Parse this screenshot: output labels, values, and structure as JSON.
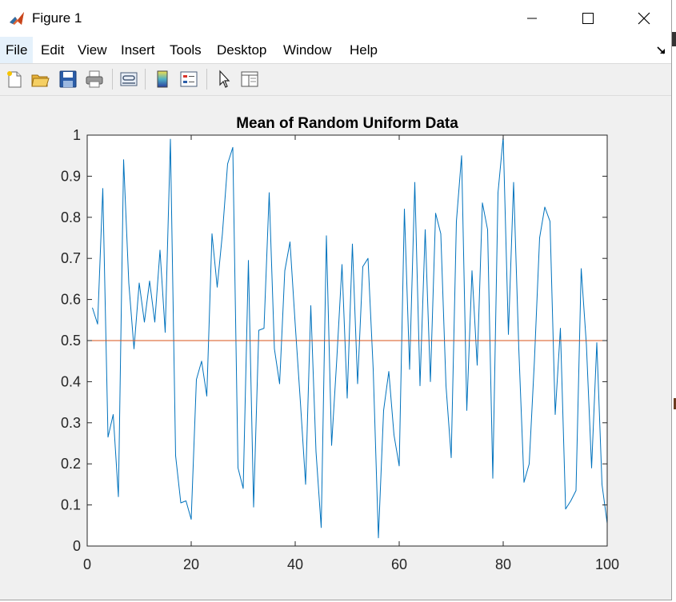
{
  "window": {
    "title": "Figure 1"
  },
  "menu": {
    "items": [
      "File",
      "Edit",
      "View",
      "Insert",
      "Tools",
      "Desktop",
      "Window",
      "Help"
    ]
  },
  "toolbar": {
    "buttons": [
      "new-figure-icon",
      "open-file-icon",
      "save-icon",
      "print-icon",
      "link-plot-icon",
      "colorbar-icon",
      "legend-icon",
      "pointer-icon",
      "property-inspector-icon"
    ]
  },
  "colors": {
    "series": "#0072bd",
    "reference_line": "#d95319",
    "window_bg": "#f0f0f0"
  },
  "chart_data": {
    "type": "line",
    "title": "Mean of Random Uniform Data",
    "xlim": [
      0,
      100
    ],
    "ylim": [
      0,
      1
    ],
    "xticks": [
      0,
      20,
      40,
      60,
      80,
      100
    ],
    "yticks": [
      0,
      0.1,
      0.2,
      0.3,
      0.4,
      0.5,
      0.6,
      0.7,
      0.8,
      0.9,
      1
    ],
    "xtick_labels": [
      "0",
      "20",
      "40",
      "60",
      "80",
      "100"
    ],
    "ytick_labels": [
      "0",
      "0.1",
      "0.2",
      "0.3",
      "0.4",
      "0.5",
      "0.6",
      "0.7",
      "0.8",
      "0.9",
      "1"
    ],
    "grid": false,
    "series": [
      {
        "x": [
          1,
          2,
          3,
          4,
          5,
          6,
          7,
          8,
          9,
          10,
          11,
          12,
          13,
          14,
          15,
          16,
          17,
          18,
          19,
          20,
          21,
          22,
          23,
          24,
          25,
          26,
          27,
          28,
          29,
          30,
          31,
          32,
          33,
          34,
          35,
          36,
          37,
          38,
          39,
          40,
          41,
          42,
          43,
          44,
          45,
          46,
          47,
          48,
          49,
          50,
          51,
          52,
          53,
          54,
          55,
          56,
          57,
          58,
          59,
          60,
          61,
          62,
          63,
          64,
          65,
          66,
          67,
          68,
          69,
          70,
          71,
          72,
          73,
          74,
          75,
          76,
          77,
          78,
          79,
          80,
          81,
          82,
          83,
          84,
          85,
          86,
          87,
          88,
          89,
          90,
          91,
          92,
          93,
          94,
          95,
          96,
          97,
          98,
          99,
          100
        ],
        "values": [
          0.58,
          0.54,
          0.87,
          0.265,
          0.32,
          0.12,
          0.94,
          0.64,
          0.48,
          0.64,
          0.545,
          0.645,
          0.545,
          0.72,
          0.52,
          0.99,
          0.22,
          0.105,
          0.11,
          0.065,
          0.405,
          0.45,
          0.365,
          0.76,
          0.63,
          0.76,
          0.93,
          0.97,
          0.19,
          0.14,
          0.695,
          0.095,
          0.525,
          0.53,
          0.86,
          0.48,
          0.395,
          0.67,
          0.74,
          0.54,
          0.35,
          0.15,
          0.585,
          0.23,
          0.045,
          0.755,
          0.245,
          0.455,
          0.685,
          0.36,
          0.735,
          0.395,
          0.68,
          0.7,
          0.43,
          0.02,
          0.33,
          0.425,
          0.27,
          0.195,
          0.82,
          0.43,
          0.885,
          0.39,
          0.77,
          0.4,
          0.81,
          0.76,
          0.39,
          0.215,
          0.79,
          0.95,
          0.33,
          0.67,
          0.44,
          0.835,
          0.77,
          0.165,
          0.86,
          0.995,
          0.515,
          0.885,
          0.48,
          0.155,
          0.2,
          0.45,
          0.75,
          0.825,
          0.79,
          0.32,
          0.53,
          0.09,
          0.11,
          0.135,
          0.675,
          0.49,
          0.19,
          0.495,
          0.15,
          0.055
        ]
      },
      {
        "x": [
          0,
          100
        ],
        "values": [
          0.5,
          0.5
        ]
      }
    ]
  }
}
